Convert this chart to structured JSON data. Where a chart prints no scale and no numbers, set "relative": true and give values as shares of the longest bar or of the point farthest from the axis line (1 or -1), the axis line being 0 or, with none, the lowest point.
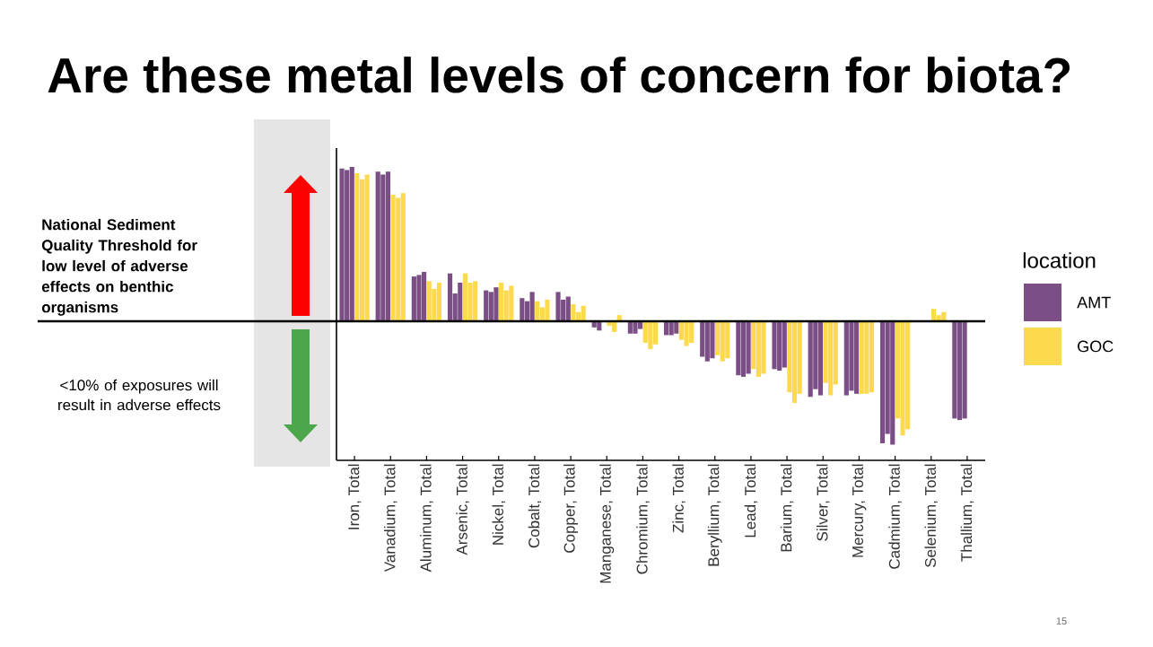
{
  "chart_data": {
    "type": "bar",
    "title": "Are these metal levels of concern for biota?",
    "relative": true,
    "categories": [
      "Iron, Total",
      "Vanadium, Total",
      "Aluminum, Total",
      "Arsenic, Total",
      "Nickel, Total",
      "Cobalt, Total",
      "Copper, Total",
      "Manganese, Total",
      "Chromium, Total",
      "Zinc, Total",
      "Beryllium, Total",
      "Lead, Total",
      "Barium, Total",
      "Silver, Total",
      "Mercury, Total",
      "Cadmium, Total",
      "Selenium, Total",
      "Thallium, Total"
    ],
    "series": [
      {
        "name": "AMT",
        "color": "#7b4f86",
        "values": [
          0.99,
          0.97,
          0.29,
          0.31,
          0.2,
          0.15,
          0.19,
          -0.04,
          -0.08,
          -0.09,
          -0.23,
          -0.35,
          -0.31,
          -0.49,
          -0.48,
          -0.79,
          null,
          -0.63
        ]
      },
      {
        "color": "#7b4f86",
        "values": [
          0.98,
          0.95,
          0.3,
          0.18,
          0.19,
          0.13,
          0.14,
          -0.06,
          -0.08,
          -0.09,
          -0.26,
          -0.36,
          -0.32,
          -0.44,
          -0.45,
          -0.73,
          null,
          -0.64
        ]
      },
      {
        "color": "#7b4f86",
        "values": [
          1,
          0.97,
          0.32,
          0.25,
          0.22,
          0.19,
          0.16,
          null,
          -0.05,
          -0.08,
          -0.24,
          -0.34,
          -0.3,
          -0.48,
          -0.47,
          -0.8,
          null,
          -0.63
        ]
      },
      {
        "name": "GOC",
        "color": "#fdd94e",
        "values": [
          0.96,
          0.82,
          0.26,
          0.31,
          0.25,
          0.13,
          0.11,
          -0.03,
          -0.14,
          -0.12,
          -0.22,
          -0.31,
          -0.46,
          -0.4,
          -0.47,
          -0.63,
          0.08,
          null
        ]
      },
      {
        "color": "#fdd94e",
        "values": [
          0.92,
          0.8,
          0.21,
          0.25,
          0.2,
          0.09,
          0.06,
          -0.07,
          -0.18,
          -0.16,
          -0.26,
          -0.36,
          -0.53,
          -0.48,
          -0.47,
          -0.74,
          0.04,
          null
        ]
      },
      {
        "color": "#fdd94e",
        "values": [
          0.95,
          0.83,
          0.25,
          0.26,
          0.23,
          0.14,
          0.1,
          0.04,
          -0.15,
          -0.14,
          -0.24,
          -0.34,
          -0.47,
          -0.41,
          -0.46,
          -0.7,
          0.06,
          null
        ]
      }
    ],
    "ref_lines": [
      {
        "axis": "y",
        "value": 0,
        "label": "National Sediment Quality Threshold for low level of adverse effects on benthic organisms",
        "color": "#000000"
      }
    ],
    "annotations": [
      "<10% of exposures will result in adverse effects",
      "15"
    ],
    "legend": "right",
    "legend_title": "location"
  }
}
